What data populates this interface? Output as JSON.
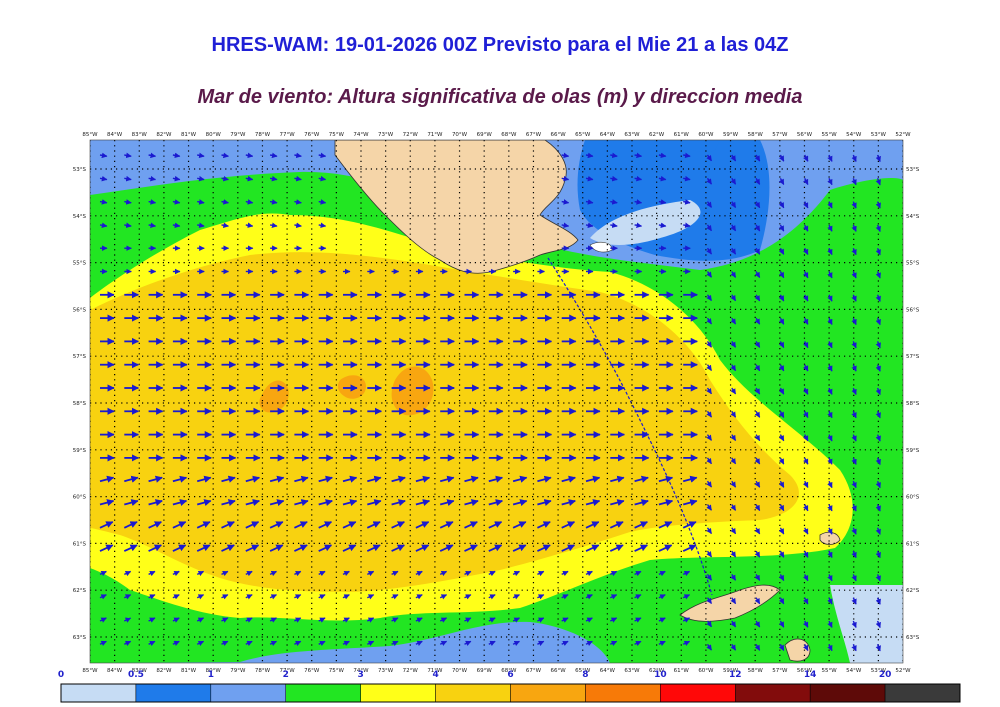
{
  "header": {
    "title": "HRES-WAM: 19-01-2026 00Z Previsto para el Mie 21 a las 04Z",
    "subtitle": "Mar de viento: Altura significativa de olas (m) y direccion media"
  },
  "map": {
    "lon_labels": [
      "85°W",
      "84°W",
      "83°W",
      "82°W",
      "81°W",
      "80°W",
      "79°W",
      "78°W",
      "77°W",
      "76°W",
      "75°W",
      "74°W",
      "73°W",
      "72°W",
      "71°W",
      "70°W",
      "69°W",
      "68°W",
      "67°W",
      "66°W",
      "65°W",
      "64°W",
      "63°W",
      "62°W",
      "61°W",
      "60°W",
      "59°W",
      "58°W",
      "57°W",
      "56°W",
      "55°W",
      "54°W",
      "53°W",
      "52°W"
    ],
    "lat_labels": [
      "53°S",
      "54°S",
      "55°S",
      "56°S",
      "57°S",
      "58°S",
      "59°S",
      "60°S",
      "61°S",
      "62°S",
      "63°S"
    ],
    "arrow_color": "#1a1ad0",
    "land_color": "#f5d5a8"
  },
  "legend": {
    "ticks": [
      "0",
      "0.5",
      "1",
      "2",
      "3",
      "4",
      "6",
      "8",
      "10",
      "12",
      "14",
      "20"
    ],
    "colors": [
      "#c6dcf4",
      "#1f7bea",
      "#6fa0f0",
      "#22e622",
      "#ffff18",
      "#f8d210",
      "#f8a610",
      "#f77a08",
      "#ff0808",
      "#820c0c",
      "#5e0a08",
      "#3a3a3a"
    ]
  }
}
